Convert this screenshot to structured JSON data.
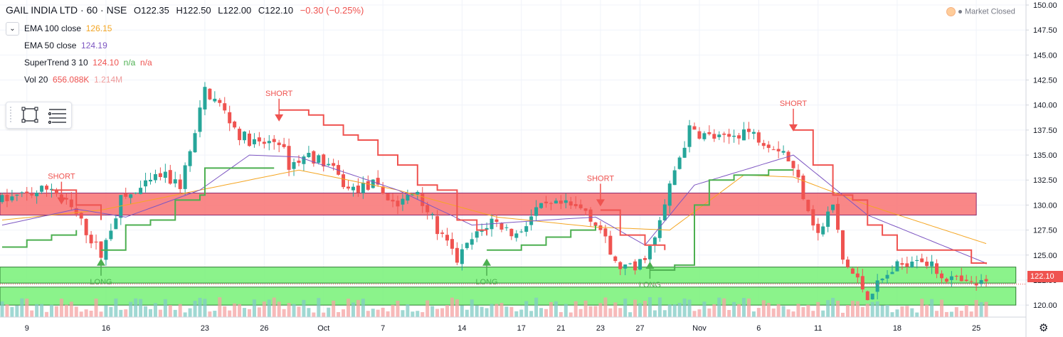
{
  "header": {
    "symbol": "GAIL INDIA LTD · 60 · NSE",
    "open": "O122.35",
    "high": "H122.50",
    "low": "L122.00",
    "close": "C122.10",
    "change": "−0.30 (−0.25%)"
  },
  "legend": [
    {
      "name": "EMA 100 close",
      "value": "126.15",
      "value2": "",
      "value3": "",
      "color": "#f5a623",
      "color2": "",
      "color3": ""
    },
    {
      "name": "EMA 50 close",
      "value": "124.19",
      "value2": "",
      "value3": "",
      "color": "#7e57c2",
      "color2": "",
      "color3": ""
    },
    {
      "name": "SuperTrend 3 10",
      "value": "124.10",
      "value2": "n/a",
      "value3": "n/a",
      "color": "#ef5350",
      "color2": "#4caf50",
      "color3": "#ef5350"
    },
    {
      "name": "Vol 20",
      "value": "656.088K",
      "value2": "1.214M",
      "value3": "",
      "color": "#ef5350",
      "color2": "#ef9a9a",
      "color3": ""
    }
  ],
  "market_status": "Market Closed",
  "last_price": "122.10",
  "colors": {
    "up": "#26a69a",
    "down": "#ef5350",
    "ema100": "#f5a623",
    "ema50": "#7e57c2",
    "st_up": "#4caf50",
    "st_down": "#ef5350",
    "zone_red": "#f87a7a",
    "zone_green": "#7ef27e"
  },
  "chart_data": {
    "type": "candlestick",
    "y_ticks": [
      "150.00",
      "147.50",
      "145.00",
      "142.50",
      "140.00",
      "137.50",
      "135.00",
      "132.50",
      "130.00",
      "127.50",
      "125.00",
      "122.50",
      "120.00"
    ],
    "y_range": [
      118.8,
      150.5
    ],
    "x_ticks": [
      {
        "label": "9",
        "idx": 5
      },
      {
        "label": "16",
        "idx": 21
      },
      {
        "label": "23",
        "idx": 41
      },
      {
        "label": "26",
        "idx": 53
      },
      {
        "label": "Oct",
        "idx": 65
      },
      {
        "label": "7",
        "idx": 77
      },
      {
        "label": "14",
        "idx": 93
      },
      {
        "label": "17",
        "idx": 105
      },
      {
        "label": "21",
        "idx": 113
      },
      {
        "label": "23",
        "idx": 121
      },
      {
        "label": "27",
        "idx": 129
      },
      {
        "label": "Nov",
        "idx": 141
      },
      {
        "label": "6",
        "idx": 153
      },
      {
        "label": "11",
        "idx": 165
      },
      {
        "label": "18",
        "idx": 181
      },
      {
        "label": "25",
        "idx": 197
      }
    ],
    "n_bars": 200,
    "zones": [
      {
        "color": "red",
        "y_top": 131.2,
        "y_bottom": 129.0,
        "start_idx": 0,
        "end_idx": 197
      },
      {
        "color": "green",
        "y_top": 123.8,
        "y_bottom": 122.2,
        "start_idx": 0,
        "end_idx": 205
      },
      {
        "color": "green",
        "y_top": 121.8,
        "y_bottom": 120.0,
        "start_idx": 0,
        "end_idx": 205
      }
    ],
    "signals": [
      {
        "label": "SHORT",
        "type": "short",
        "idx": 12,
        "price": 130.2
      },
      {
        "label": "LONG",
        "type": "long",
        "idx": 20,
        "price": 124.5
      },
      {
        "label": "SHORT",
        "type": "short",
        "idx": 56,
        "price": 138.5
      },
      {
        "label": "LONG",
        "type": "long",
        "idx": 98,
        "price": 124.5
      },
      {
        "label": "SHORT",
        "type": "short",
        "idx": 121,
        "price": 130.0
      },
      {
        "label": "LONG",
        "type": "long",
        "idx": 131,
        "price": 124.2
      },
      {
        "label": "SHORT",
        "type": "short",
        "idx": 160,
        "price": 137.5
      }
    ],
    "price_keys": [
      [
        0,
        130.5
      ],
      [
        5,
        131.0
      ],
      [
        10,
        131.8
      ],
      [
        15,
        129.0
      ],
      [
        20,
        125.0
      ],
      [
        24,
        130.5
      ],
      [
        28,
        131.5
      ],
      [
        32,
        133.0
      ],
      [
        36,
        132.0
      ],
      [
        39,
        137.0
      ],
      [
        41,
        141.5
      ],
      [
        44,
        140.0
      ],
      [
        48,
        137.0
      ],
      [
        52,
        136.0
      ],
      [
        56,
        136.5
      ],
      [
        58,
        134.0
      ],
      [
        62,
        135.0
      ],
      [
        66,
        134.0
      ],
      [
        70,
        131.5
      ],
      [
        75,
        132.0
      ],
      [
        80,
        130.0
      ],
      [
        84,
        131.5
      ],
      [
        88,
        127.5
      ],
      [
        92,
        124.5
      ],
      [
        95,
        126.5
      ],
      [
        99,
        128.5
      ],
      [
        104,
        127.0
      ],
      [
        108,
        129.5
      ],
      [
        113,
        130.0
      ],
      [
        118,
        129.5
      ],
      [
        121,
        127.5
      ],
      [
        124,
        124.0
      ],
      [
        128,
        123.5
      ],
      [
        132,
        126.5
      ],
      [
        136,
        133.5
      ],
      [
        139,
        137.5
      ],
      [
        142,
        137.0
      ],
      [
        146,
        136.5
      ],
      [
        150,
        137.5
      ],
      [
        154,
        136.5
      ],
      [
        158,
        135.5
      ],
      [
        161,
        132.5
      ],
      [
        165,
        127.0
      ],
      [
        168,
        130.0
      ],
      [
        170,
        124.5
      ],
      [
        175,
        121.0
      ],
      [
        180,
        123.5
      ],
      [
        185,
        125.0
      ],
      [
        190,
        123.0
      ],
      [
        195,
        122.0
      ],
      [
        199,
        122.1
      ]
    ],
    "ema100_keys": [
      [
        0,
        128.5
      ],
      [
        20,
        129.5
      ],
      [
        40,
        131.5
      ],
      [
        60,
        133.5
      ],
      [
        80,
        131.5
      ],
      [
        100,
        128.8
      ],
      [
        120,
        127.8
      ],
      [
        135,
        127.5
      ],
      [
        150,
        133.0
      ],
      [
        160,
        132.8
      ],
      [
        175,
        130.0
      ],
      [
        199,
        126.15
      ]
    ],
    "ema50_keys": [
      [
        0,
        128.0
      ],
      [
        15,
        129.6
      ],
      [
        25,
        128.8
      ],
      [
        40,
        131.5
      ],
      [
        50,
        135.0
      ],
      [
        60,
        134.8
      ],
      [
        80,
        131.5
      ],
      [
        95,
        128.0
      ],
      [
        110,
        128.5
      ],
      [
        120,
        128.8
      ],
      [
        130,
        126.0
      ],
      [
        140,
        132.0
      ],
      [
        160,
        135.0
      ],
      [
        175,
        129.0
      ],
      [
        199,
        124.19
      ]
    ],
    "st_segments": [
      {
        "dir": "up",
        "pts": [
          [
            0,
            125.8
          ],
          [
            5,
            126.5
          ],
          [
            10,
            127.0
          ],
          [
            15,
            127.5
          ]
        ]
      },
      {
        "dir": "down",
        "pts": [
          [
            10,
            131.5
          ],
          [
            15,
            130.0
          ],
          [
            20,
            128.5
          ]
        ]
      },
      {
        "dir": "up",
        "pts": [
          [
            20,
            125.5
          ],
          [
            25,
            128.0
          ],
          [
            30,
            128.5
          ],
          [
            35,
            130.5
          ],
          [
            40,
            131.0
          ],
          [
            41,
            133.7
          ],
          [
            55,
            133.7
          ]
        ]
      },
      {
        "dir": "down",
        "pts": [
          [
            56,
            139.5
          ],
          [
            60,
            139.5
          ],
          [
            62,
            139.0
          ],
          [
            65,
            138.0
          ],
          [
            69,
            137.0
          ],
          [
            72,
            136.5
          ],
          [
            76,
            135.0
          ],
          [
            80,
            134.0
          ],
          [
            84,
            132.0
          ],
          [
            88,
            131.5
          ],
          [
            92,
            128.5
          ],
          [
            96,
            127.5
          ],
          [
            98,
            127.0
          ]
        ]
      },
      {
        "dir": "up",
        "pts": [
          [
            98,
            125.5
          ],
          [
            105,
            126.0
          ],
          [
            110,
            126.8
          ],
          [
            115,
            127.5
          ],
          [
            120,
            128.0
          ]
        ]
      },
      {
        "dir": "down",
        "pts": [
          [
            121,
            129.5
          ],
          [
            125,
            127.0
          ],
          [
            130,
            126.0
          ],
          [
            134,
            125.5
          ]
        ]
      },
      {
        "dir": "up",
        "pts": [
          [
            131,
            123.5
          ],
          [
            136,
            124.0
          ],
          [
            140,
            130.0
          ],
          [
            143,
            132.5
          ],
          [
            148,
            133.0
          ],
          [
            155,
            133.5
          ],
          [
            160,
            133.5
          ]
        ]
      },
      {
        "dir": "down",
        "pts": [
          [
            160,
            137.5
          ],
          [
            164,
            134.0
          ],
          [
            168,
            131.0
          ],
          [
            172,
            130.5
          ],
          [
            175,
            128.0
          ],
          [
            178,
            127.0
          ],
          [
            181,
            125.5
          ],
          [
            190,
            125.5
          ],
          [
            196,
            124.2
          ],
          [
            199,
            124.1
          ]
        ]
      }
    ]
  }
}
